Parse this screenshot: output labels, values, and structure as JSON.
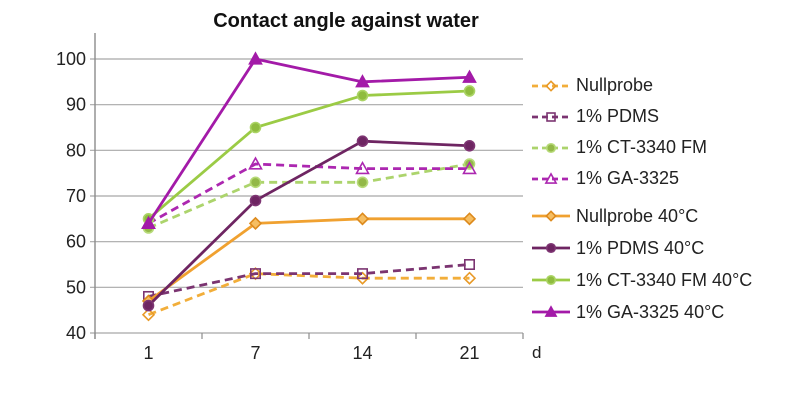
{
  "chart_data": {
    "type": "line",
    "title": "Contact angle against water",
    "xlabel": "d",
    "ylabel": "",
    "x_categories": [
      "1",
      "7",
      "14",
      "21"
    ],
    "ylim": [
      40,
      100
    ],
    "y_ticks": [
      40,
      50,
      60,
      70,
      80,
      90,
      100
    ],
    "grid": true,
    "legend_position": "right",
    "colors": {
      "gridline": "#a8a8a8",
      "axis": "#8c8c8c",
      "text": "#222222"
    },
    "series": [
      {
        "name": "Nullprobe",
        "values": [
          44,
          53,
          52,
          52
        ],
        "color": "#f2ae3a",
        "dash": true,
        "marker": "diamond",
        "marker_fill": "none",
        "marker_stroke": "#e89a28"
      },
      {
        "name": "1% PDMS",
        "values": [
          48,
          53,
          53,
          55
        ],
        "color": "#7b3471",
        "dash": true,
        "marker": "square",
        "marker_fill": "none",
        "marker_stroke": "#7b3471"
      },
      {
        "name": "1% CT-3340 FM",
        "values": [
          63,
          73,
          73,
          77
        ],
        "color": "#acd46c",
        "dash": true,
        "marker": "circle",
        "marker_fill": "#93b848",
        "marker_stroke": "#b7da78"
      },
      {
        "name": "1% GA-3325",
        "values": [
          64,
          77,
          76,
          76
        ],
        "color": "#ac27b0",
        "dash": true,
        "marker": "triangle",
        "marker_fill": "none",
        "marker_stroke": "#ac27b0"
      },
      {
        "name": "Nullprobe 40°C",
        "values": [
          47,
          64,
          65,
          65
        ],
        "color": "#f0a130",
        "dash": false,
        "marker": "diamond",
        "marker_fill": "#f6be62",
        "marker_stroke": "#dd8a1d"
      },
      {
        "name": "1% PDMS 40°C",
        "values": [
          46,
          69,
          82,
          81
        ],
        "color": "#6e2562",
        "dash": false,
        "marker": "circle",
        "marker_fill": "#6e2562",
        "marker_stroke": "#7e3573"
      },
      {
        "name": "1% CT-3340 FM 40°C",
        "values": [
          65,
          85,
          92,
          93
        ],
        "color": "#9bcb45",
        "dash": false,
        "marker": "circle",
        "marker_fill": "#8fbc3f",
        "marker_stroke": "#abd465"
      },
      {
        "name": "1% GA-3325 40°C",
        "values": [
          64,
          100,
          95,
          96
        ],
        "color": "#a31aa8",
        "dash": false,
        "marker": "triangle",
        "marker_fill": "#a31aa8",
        "marker_stroke": "#a31aa8"
      }
    ]
  }
}
